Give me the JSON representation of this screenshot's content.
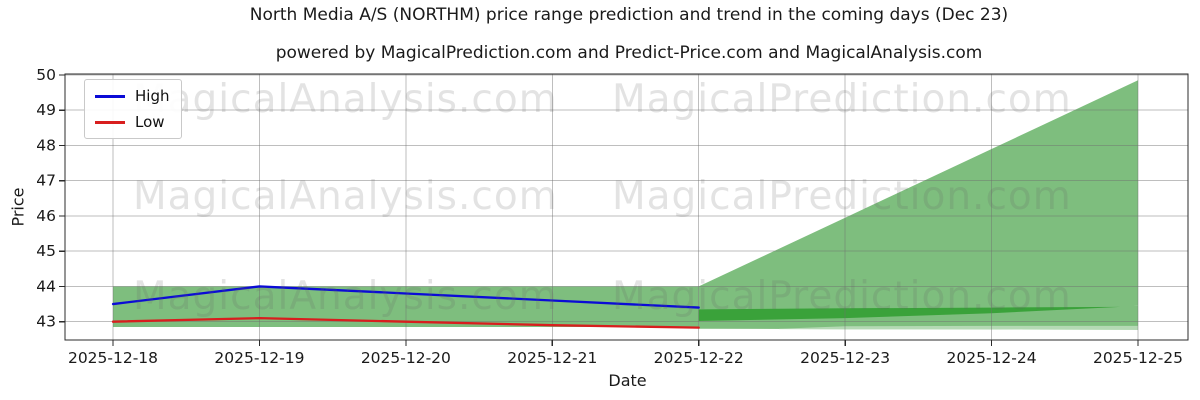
{
  "chart_data": {
    "type": "line",
    "title": "North Media A/S (NORTHM) price range prediction and trend in the coming days (Dec 23)",
    "subtitle": "powered by MagicalPrediction.com and Predict-Price.com and MagicalAnalysis.com",
    "xlabel": "Date",
    "ylabel": "Price",
    "x_labels": [
      "2025-12-18",
      "2025-12-19",
      "2025-12-20",
      "2025-12-21",
      "2025-12-22",
      "2025-12-23",
      "2025-12-24",
      "2025-12-25"
    ],
    "yticks": [
      43,
      44,
      45,
      46,
      47,
      48,
      49,
      50
    ],
    "ylim": [
      42.5,
      50.05
    ],
    "grid": true,
    "legend_position": "upper left",
    "series": [
      {
        "name": "High",
        "color": "#0b0bd6",
        "x_idx": [
          0,
          1,
          2,
          3,
          4
        ],
        "values": [
          43.5,
          44.0,
          43.8,
          43.6,
          43.4
        ]
      },
      {
        "name": "Low",
        "color": "#d81e1e",
        "x_idx": [
          0,
          1,
          2,
          3,
          4
        ],
        "values": [
          43.0,
          43.1,
          43.0,
          42.9,
          42.83
        ]
      }
    ],
    "bands": [
      {
        "name": "history-range-band",
        "color": "#7ebe7e",
        "x_idx": [
          0,
          4
        ],
        "top": [
          44.0,
          44.0
        ],
        "bottom": [
          42.85,
          42.85
        ]
      },
      {
        "name": "forecast-fan",
        "color": "#7ebe7e",
        "x_idx": [
          4,
          5,
          6,
          7
        ],
        "top": [
          44.0,
          45.95,
          47.9,
          49.85
        ],
        "bottom": [
          43.02,
          43.1,
          43.24,
          43.45
        ]
      },
      {
        "name": "forecast-low-band",
        "color": "#7ebe7e",
        "x_idx": [
          4,
          5,
          6,
          7
        ],
        "top": [
          43.35,
          43.38,
          43.41,
          43.45
        ],
        "bottom": [
          42.8,
          42.79,
          42.78,
          42.77
        ]
      },
      {
        "name": "overlap-dark-band",
        "color": "#3aa23a",
        "x_idx": [
          4,
          5,
          6,
          6.88
        ],
        "top": [
          43.35,
          43.38,
          43.4,
          43.42
        ],
        "bottom": [
          43.02,
          43.1,
          43.24,
          43.42
        ]
      },
      {
        "name": "light-low-strip",
        "color": "#b4d9b4",
        "x_idx": [
          4.55,
          5,
          6,
          7
        ],
        "top": [
          42.8,
          42.87,
          42.88,
          42.88
        ],
        "bottom": [
          42.79,
          42.78,
          42.78,
          42.77
        ]
      }
    ]
  },
  "watermarks": {
    "analysis": "MagicalAnalysis.com",
    "prediction": "MagicalPrediction.com"
  }
}
